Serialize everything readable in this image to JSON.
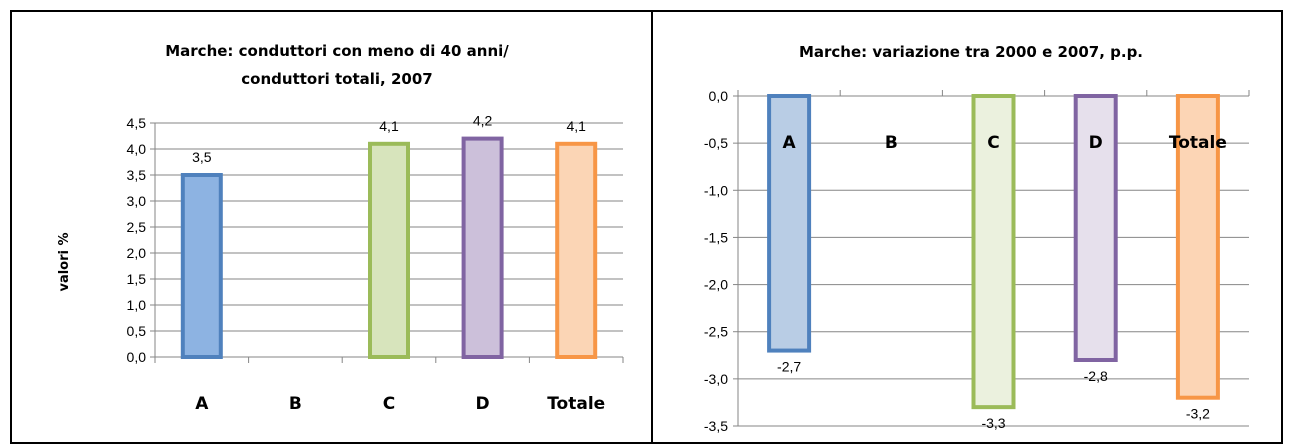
{
  "chart_data": [
    {
      "type": "bar",
      "title_lines": [
        "Marche: conduttori con meno di 40 anni/",
        "conduttori totali, 2007"
      ],
      "ylabel": "valori %",
      "xlabel": "",
      "categories": [
        "A",
        "B",
        "C",
        "D",
        "Totale"
      ],
      "values": [
        3.5,
        null,
        4.1,
        4.2,
        4.1
      ],
      "data_labels": [
        "3,5",
        "",
        "4,1",
        "4,2",
        "4,1"
      ],
      "ylim": [
        0,
        4.5
      ],
      "yticks": [
        "0,0",
        "0,5",
        "1,0",
        "1,5",
        "2,0",
        "2,5",
        "3,0",
        "3,5",
        "4,0",
        "4,5"
      ],
      "grid": true,
      "colors": {
        "fill": [
          "#8db3e2",
          "#ffffff",
          "#d7e4bc",
          "#ccc0da",
          "#fbd5b5"
        ],
        "stroke": [
          "#4f81bd",
          "#ffffff",
          "#9bbb59",
          "#8064a2",
          "#f79646"
        ]
      }
    },
    {
      "type": "bar",
      "title_lines": [
        "Marche: variazione tra 2000 e 2007, p.p."
      ],
      "ylabel": "",
      "xlabel": "",
      "categories": [
        "A",
        "B",
        "C",
        "D",
        "Totale"
      ],
      "values": [
        -2.7,
        null,
        -3.3,
        -2.8,
        -3.2
      ],
      "data_labels": [
        "-2,7",
        "",
        "-3,3",
        "-2,8",
        "-3,2"
      ],
      "ylim": [
        -3.5,
        0
      ],
      "yticks": [
        "0,0",
        "-0,5",
        "-1,0",
        "-1,5",
        "-2,0",
        "-2,5",
        "-3,0",
        "-3,5"
      ],
      "grid": true,
      "colors": {
        "fill": [
          "#b9cde5",
          "#ffffff",
          "#ebf1de",
          "#e6e0ec",
          "#fcd5b5"
        ],
        "stroke": [
          "#4f81bd",
          "#ffffff",
          "#9bbb59",
          "#8064a2",
          "#f79646"
        ]
      }
    }
  ]
}
